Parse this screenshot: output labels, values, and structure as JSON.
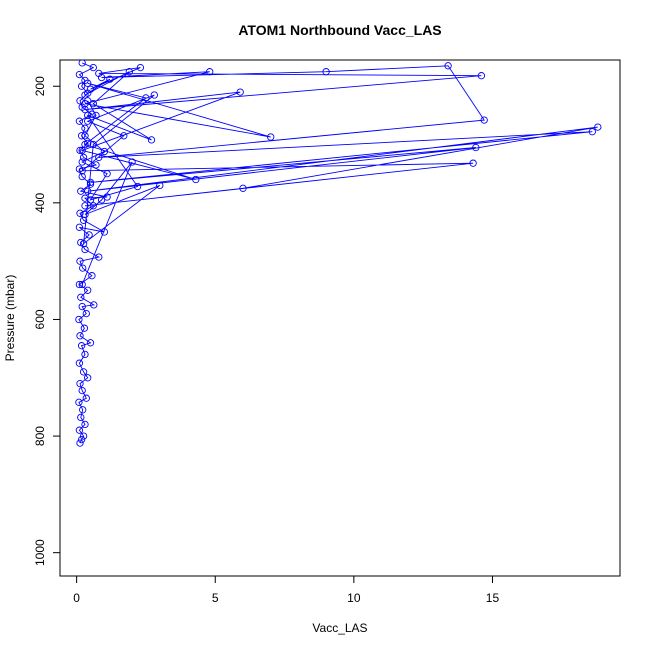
{
  "chart_data": {
    "type": "line",
    "title": "ATOM1 Northbound Vacc_LAS",
    "xlabel": "Vacc_LAS",
    "ylabel": "Pressure (mbar)",
    "xlim": [
      -0.6,
      19.6
    ],
    "ylim": [
      1040,
      155
    ],
    "y_reversed": true,
    "x_ticks": [
      0,
      5,
      10,
      15
    ],
    "y_ticks": [
      200,
      400,
      600,
      800,
      1000
    ],
    "grid": false,
    "legend": "none",
    "marker": "open-circle",
    "color": "#0000ff",
    "series": [
      {
        "points": [
          [
            0.12,
            812
          ],
          [
            0.18,
            806
          ],
          [
            0.25,
            800
          ],
          [
            0.1,
            790
          ],
          [
            0.3,
            780
          ],
          [
            0.15,
            768
          ],
          [
            0.22,
            755
          ],
          [
            0.08,
            742
          ],
          [
            0.35,
            735
          ],
          [
            0.2,
            722
          ],
          [
            0.12,
            710
          ],
          [
            0.4,
            700
          ],
          [
            0.25,
            690
          ],
          [
            0.1,
            675
          ],
          [
            0.3,
            660
          ],
          [
            0.18,
            645
          ],
          [
            0.5,
            640
          ],
          [
            0.12,
            628
          ],
          [
            0.28,
            615
          ],
          [
            0.08,
            600
          ],
          [
            0.35,
            590
          ],
          [
            0.2,
            578
          ],
          [
            0.62,
            575
          ],
          [
            0.15,
            562
          ],
          [
            0.4,
            550
          ],
          [
            0.1,
            540
          ],
          [
            0.55,
            525
          ],
          [
            0.22,
            512
          ],
          [
            0.12,
            500
          ],
          [
            0.8,
            493
          ],
          [
            0.3,
            480
          ],
          [
            0.15,
            468
          ],
          [
            0.45,
            455
          ],
          [
            0.1,
            442
          ],
          [
            1.0,
            450
          ],
          [
            0.25,
            430
          ],
          [
            0.12,
            418
          ],
          [
            0.6,
            405
          ],
          [
            0.3,
            392
          ],
          [
            1.1,
            390
          ],
          [
            0.15,
            380
          ],
          [
            0.5,
            368
          ],
          [
            0.2,
            355
          ],
          [
            0.1,
            342
          ],
          [
            0.7,
            335
          ],
          [
            0.25,
            322
          ],
          [
            0.12,
            310
          ],
          [
            0.4,
            298
          ],
          [
            0.18,
            285
          ],
          [
            0.3,
            272
          ],
          [
            0.1,
            260
          ],
          [
            0.55,
            248
          ],
          [
            0.2,
            236
          ],
          [
            0.12,
            225
          ],
          [
            0.4,
            212
          ],
          [
            0.18,
            200
          ],
          [
            0.3,
            190
          ],
          [
            0.1,
            180
          ],
          [
            0.6,
            168
          ],
          [
            0.2,
            160
          ]
        ]
      },
      {
        "points": [
          [
            0.2,
            540
          ],
          [
            2.0,
            330
          ],
          [
            0.9,
            395
          ],
          [
            0.3,
            420
          ],
          [
            3.0,
            370
          ],
          [
            0.25,
            470
          ],
          [
            0.6,
            300
          ],
          [
            2.8,
            215
          ],
          [
            0.4,
            260
          ],
          [
            1.7,
            285
          ],
          [
            0.2,
            345
          ],
          [
            14.3,
            332
          ],
          [
            0.3,
            405
          ],
          [
            6.0,
            375
          ],
          [
            18.8,
            270
          ],
          [
            0.4,
            380
          ],
          [
            14.4,
            305
          ],
          [
            0.5,
            365
          ],
          [
            18.6,
            278
          ],
          [
            0.8,
            322
          ],
          [
            14.7,
            258
          ],
          [
            13.4,
            165
          ],
          [
            9.0,
            175
          ],
          [
            0.9,
            185
          ],
          [
            4.8,
            175
          ],
          [
            0.3,
            230
          ],
          [
            7.0,
            287
          ],
          [
            0.4,
            195
          ],
          [
            2.5,
            220
          ],
          [
            0.3,
            300
          ],
          [
            4.3,
            360
          ],
          [
            0.2,
            310
          ],
          [
            5.9,
            210
          ],
          [
            0.3,
            240
          ],
          [
            14.6,
            182
          ],
          [
            0.8,
            178
          ],
          [
            2.3,
            168
          ],
          [
            0.5,
            205
          ],
          [
            1.2,
            188
          ],
          [
            0.3,
            215
          ],
          [
            1.9,
            175
          ],
          [
            0.6,
            230
          ],
          [
            2.7,
            292
          ],
          [
            0.4,
            250
          ],
          [
            2.2,
            372
          ],
          [
            0.5,
            395
          ],
          [
            1.1,
            350
          ],
          [
            0.2,
            330
          ],
          [
            1.0,
            312
          ],
          [
            0.3,
            285
          ],
          [
            0.7,
            250
          ],
          [
            0.4,
            225
          ]
        ]
      }
    ]
  }
}
